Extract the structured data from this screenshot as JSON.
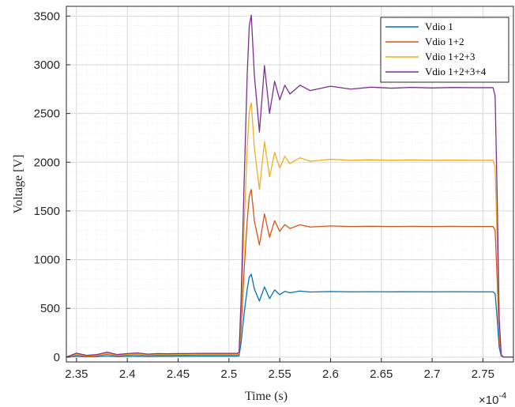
{
  "chart_data": {
    "type": "line",
    "xlabel": "Time (s)",
    "ylabel": "Voltage [V]",
    "x_multiplier_label": "×10",
    "x_multiplier_exponent": "-4",
    "xlim": [
      2.34,
      2.78
    ],
    "ylim": [
      -50,
      3600
    ],
    "xticks": [
      2.35,
      2.4,
      2.45,
      2.5,
      2.55,
      2.6,
      2.65,
      2.7,
      2.75
    ],
    "xtick_labels": [
      "2.35",
      "2.4",
      "2.45",
      "2.5",
      "2.55",
      "2.6",
      "2.65",
      "2.7",
      "2.75"
    ],
    "yticks": [
      0,
      500,
      1000,
      1500,
      2000,
      2500,
      3000,
      3500
    ],
    "ytick_labels": [
      "0",
      "500",
      "1000",
      "1500",
      "2000",
      "2500",
      "3000",
      "3500"
    ],
    "grid": true,
    "minor_grid": true,
    "legend_position": "top-right",
    "series": [
      {
        "name": "Vdio 1",
        "color": "#0072BD",
        "x": [
          2.34,
          2.35,
          2.36,
          2.37,
          2.38,
          2.39,
          2.4,
          2.41,
          2.42,
          2.43,
          2.44,
          2.45,
          2.46,
          2.47,
          2.48,
          2.49,
          2.5,
          2.508,
          2.51,
          2.512,
          2.515,
          2.518,
          2.52,
          2.522,
          2.525,
          2.53,
          2.535,
          2.54,
          2.545,
          2.55,
          2.555,
          2.56,
          2.57,
          2.58,
          2.6,
          2.62,
          2.64,
          2.66,
          2.68,
          2.7,
          2.72,
          2.74,
          2.76,
          2.762,
          2.764,
          2.766,
          2.768,
          2.77,
          2.772,
          2.78
        ],
        "y": [
          0,
          8,
          4,
          6,
          12,
          6,
          8,
          10,
          7,
          9,
          8,
          9,
          9,
          10,
          10,
          10,
          10,
          10,
          12,
          150,
          450,
          700,
          820,
          850,
          700,
          575,
          720,
          600,
          690,
          640,
          675,
          660,
          678,
          668,
          673,
          670,
          671,
          670,
          671,
          670,
          671,
          670,
          670,
          650,
          400,
          100,
          10,
          0,
          0,
          0
        ]
      },
      {
        "name": "Vdio 1+2",
        "color": "#D95319",
        "x": [
          2.34,
          2.35,
          2.36,
          2.37,
          2.38,
          2.39,
          2.4,
          2.41,
          2.42,
          2.43,
          2.44,
          2.45,
          2.46,
          2.47,
          2.48,
          2.49,
          2.5,
          2.508,
          2.51,
          2.512,
          2.515,
          2.518,
          2.52,
          2.522,
          2.525,
          2.53,
          2.535,
          2.54,
          2.545,
          2.55,
          2.555,
          2.56,
          2.57,
          2.58,
          2.6,
          2.62,
          2.64,
          2.66,
          2.68,
          2.7,
          2.72,
          2.74,
          2.76,
          2.762,
          2.764,
          2.766,
          2.768,
          2.77,
          2.772,
          2.78
        ],
        "y": [
          0,
          22,
          10,
          14,
          28,
          14,
          20,
          24,
          16,
          20,
          18,
          20,
          20,
          22,
          22,
          22,
          22,
          22,
          26,
          300,
          900,
          1400,
          1650,
          1720,
          1400,
          1150,
          1470,
          1230,
          1400,
          1290,
          1360,
          1320,
          1358,
          1335,
          1346,
          1340,
          1343,
          1340,
          1342,
          1340,
          1342,
          1340,
          1340,
          1300,
          800,
          200,
          15,
          0,
          0,
          0
        ]
      },
      {
        "name": "Vdio 1+2+3",
        "color": "#EDB120",
        "x": [
          2.34,
          2.35,
          2.36,
          2.37,
          2.38,
          2.39,
          2.4,
          2.41,
          2.42,
          2.43,
          2.44,
          2.45,
          2.46,
          2.47,
          2.48,
          2.49,
          2.5,
          2.508,
          2.51,
          2.512,
          2.515,
          2.518,
          2.52,
          2.522,
          2.525,
          2.53,
          2.535,
          2.54,
          2.545,
          2.55,
          2.555,
          2.56,
          2.57,
          2.58,
          2.6,
          2.62,
          2.64,
          2.66,
          2.68,
          2.7,
          2.72,
          2.74,
          2.76,
          2.762,
          2.764,
          2.766,
          2.768,
          2.77,
          2.772,
          2.78
        ],
        "y": [
          0,
          30,
          14,
          20,
          38,
          20,
          28,
          32,
          22,
          28,
          26,
          28,
          28,
          30,
          30,
          30,
          30,
          30,
          36,
          450,
          1350,
          2150,
          2520,
          2610,
          2150,
          1720,
          2210,
          1850,
          2100,
          1940,
          2060,
          1985,
          2045,
          2010,
          2030,
          2020,
          2025,
          2020,
          2024,
          2020,
          2022,
          2020,
          2020,
          1950,
          1200,
          300,
          20,
          0,
          0,
          0
        ]
      },
      {
        "name": "Vdio 1+2+3+4",
        "color": "#7E2F8E",
        "x": [
          2.34,
          2.35,
          2.36,
          2.37,
          2.38,
          2.39,
          2.4,
          2.41,
          2.42,
          2.43,
          2.44,
          2.45,
          2.46,
          2.47,
          2.48,
          2.49,
          2.5,
          2.508,
          2.51,
          2.512,
          2.515,
          2.518,
          2.52,
          2.522,
          2.525,
          2.53,
          2.535,
          2.54,
          2.545,
          2.55,
          2.555,
          2.56,
          2.57,
          2.58,
          2.6,
          2.62,
          2.64,
          2.66,
          2.68,
          2.7,
          2.72,
          2.74,
          2.76,
          2.762,
          2.764,
          2.766,
          2.768,
          2.77,
          2.772,
          2.78
        ],
        "y": [
          0,
          40,
          18,
          26,
          50,
          26,
          36,
          42,
          30,
          36,
          34,
          36,
          36,
          38,
          38,
          38,
          38,
          38,
          46,
          600,
          1800,
          2900,
          3400,
          3510,
          2900,
          2310,
          2990,
          2500,
          2830,
          2640,
          2790,
          2700,
          2790,
          2735,
          2780,
          2750,
          2770,
          2760,
          2768,
          2762,
          2767,
          2765,
          2765,
          2680,
          1650,
          400,
          25,
          0,
          0,
          0
        ]
      }
    ]
  }
}
